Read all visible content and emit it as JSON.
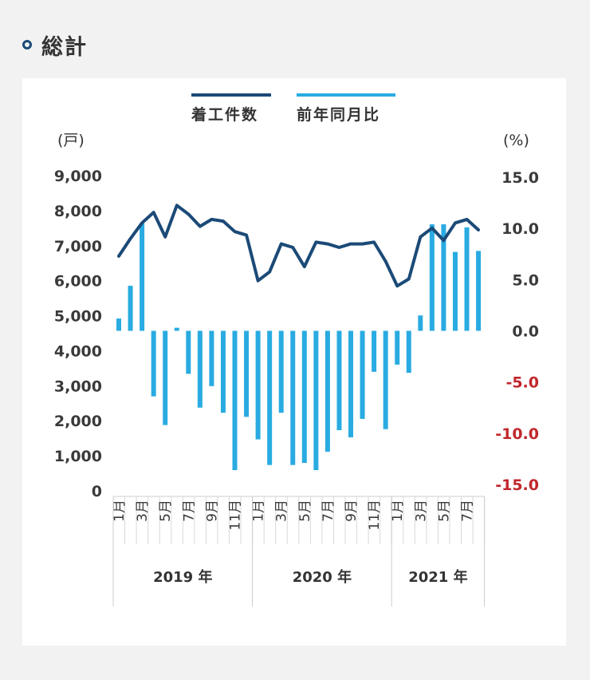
{
  "section": {
    "title": "総計"
  },
  "colors": {
    "line": "#1b4a77",
    "bar": "#29abe2",
    "negative_tick": "#c1272d"
  },
  "chart_data": {
    "type": "bar",
    "legend": {
      "line_label": "着工件数",
      "bar_label": "前年同月比",
      "placement": "top"
    },
    "left_unit": "(戸)",
    "right_unit": "(%)",
    "ylim_left": [
      0,
      9000
    ],
    "ylim_right": [
      -15,
      15
    ],
    "yticks_left": [
      "0",
      "1,000",
      "2,000",
      "3,000",
      "4,000",
      "5,000",
      "6,000",
      "7,000",
      "8,000",
      "9,000"
    ],
    "yticks_right": [
      "15.0",
      "10.0",
      "5.0",
      "0.0",
      "-5.0",
      "-10.0",
      "-15.0"
    ],
    "month_labels": [
      "1月",
      "",
      "3月",
      "",
      "5月",
      "",
      "7月",
      "",
      "9月",
      "",
      "11月",
      "",
      "1月",
      "",
      "3月",
      "",
      "5月",
      "",
      "7月",
      "",
      "9月",
      "",
      "11月",
      "",
      "1月",
      "",
      "3月",
      "",
      "5月",
      "",
      "7月",
      ""
    ],
    "years": [
      {
        "label": "2019 年",
        "months": 12
      },
      {
        "label": "2020 年",
        "months": 12
      },
      {
        "label": "2021 年",
        "months": 8
      }
    ],
    "series": [
      {
        "name": "着工件数",
        "type": "line",
        "axis": "left",
        "values": [
          6700,
          7200,
          7650,
          7950,
          7250,
          8150,
          7900,
          7550,
          7750,
          7700,
          7400,
          7300,
          6000,
          6250,
          7050,
          6950,
          6400,
          7100,
          7050,
          6950,
          7050,
          7050,
          7100,
          6550,
          5850,
          6050,
          7250,
          7500,
          7150,
          7650,
          7750,
          7450
        ]
      },
      {
        "name": "前年同月比",
        "type": "bar",
        "axis": "right",
        "values": [
          1.2,
          4.4,
          10.5,
          -6.4,
          -9.2,
          0.3,
          -4.2,
          -7.5,
          -5.4,
          -8.0,
          -13.6,
          -8.4,
          -10.6,
          -13.1,
          -8.0,
          -13.1,
          -12.9,
          -13.6,
          -11.8,
          -9.7,
          -10.4,
          -8.6,
          -4.0,
          -9.6,
          -3.3,
          -4.1,
          1.5,
          10.4,
          10.4,
          7.7,
          10.1,
          7.8
        ]
      }
    ]
  }
}
